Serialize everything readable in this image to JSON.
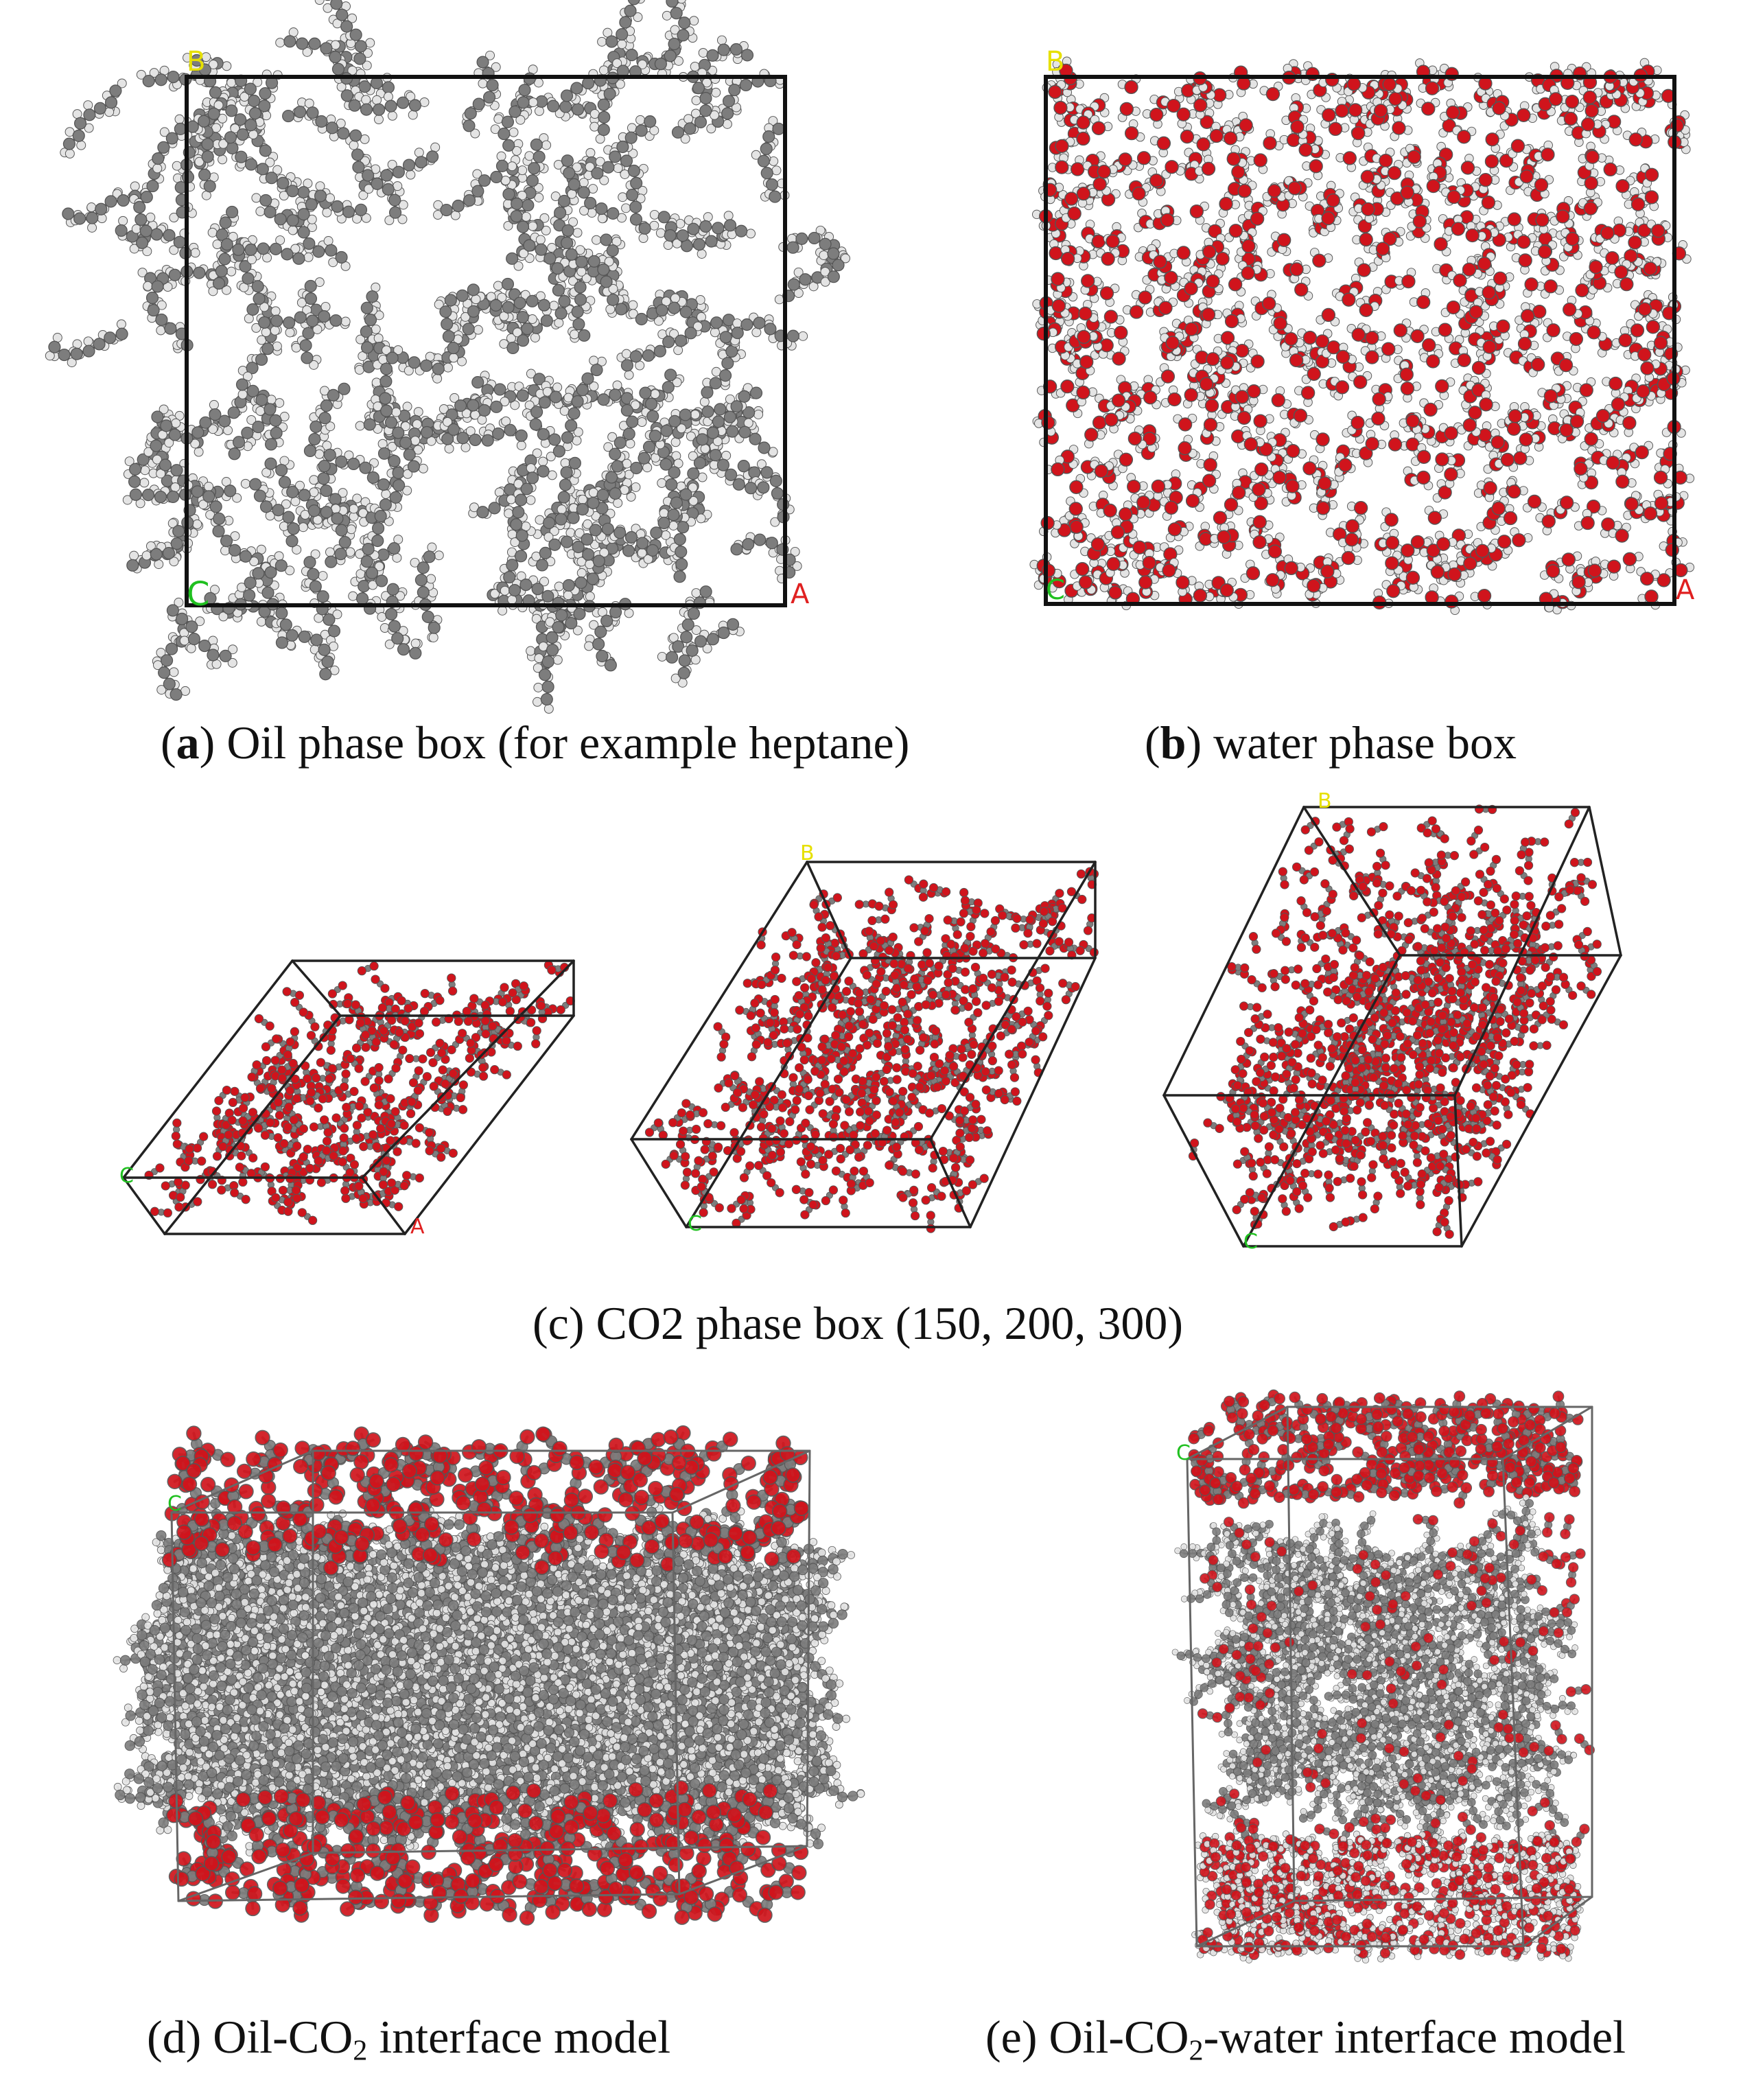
{
  "figure": {
    "panels": [
      {
        "id": "a",
        "letter": "a",
        "text": "Oil phase box (for example heptane)"
      },
      {
        "id": "b",
        "letter": "b",
        "text": "water phase box"
      },
      {
        "id": "c",
        "text": "(c) CO2 phase box (150, 200, 300)"
      },
      {
        "id": "d",
        "prefix": "(d) Oil-CO",
        "sub": "2",
        "suffix": " interface model"
      },
      {
        "id": "e",
        "prefix": "(e) Oil-CO",
        "sub": "2",
        "suffix": "-water interface model"
      }
    ],
    "axis_labels": {
      "a": "A",
      "b": "B",
      "c": "C"
    },
    "colors": {
      "oxygen": "#d0141c",
      "hydrogen": "#e4e4e4",
      "carbon": "#7d7d7d",
      "box_line": "#111111",
      "axis_a": "#e02020",
      "axis_b": "#e6e000",
      "axis_c": "#20c020"
    }
  }
}
